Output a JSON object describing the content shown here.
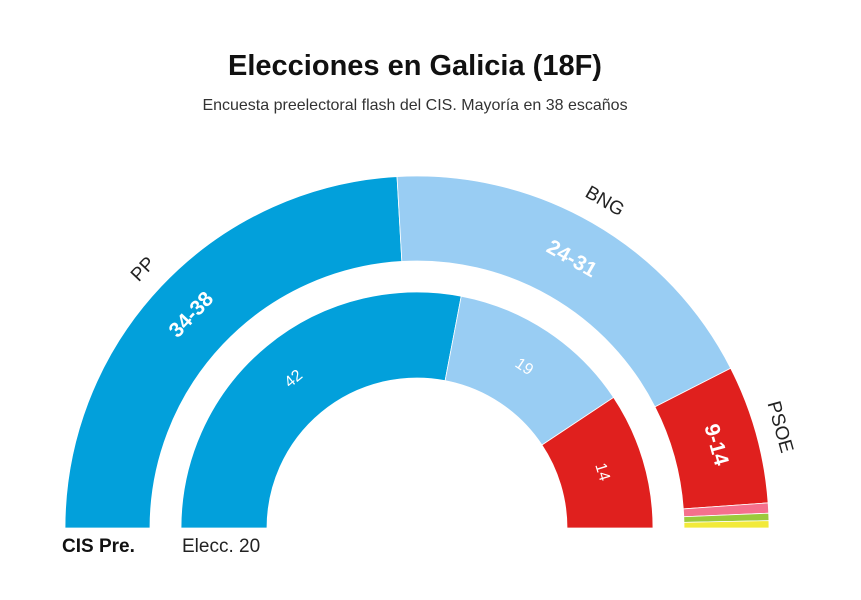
{
  "title": "Elecciones en Galicia (18F)",
  "subtitle": "Encuesta preelectoral flash del CIS. Mayoría en 38 escaños",
  "chart_data": {
    "type": "parliament-semicircle",
    "title": "Elecciones en Galicia (18F)",
    "subtitle": "Encuesta preelectoral flash del CIS. Mayoría en 38 escaños",
    "total_seats": 75,
    "majority": 38,
    "rings": [
      {
        "name": "CIS Pre.",
        "segments": [
          {
            "party": "PP",
            "label": "34-38",
            "value": 36,
            "color": "#02a0db"
          },
          {
            "party": "BNG",
            "label": "24-31",
            "value": 27.5,
            "color": "#99cdf3"
          },
          {
            "party": "PSOE",
            "label": "9-14",
            "value": 9.5,
            "color": "#e0201e"
          },
          {
            "party": "",
            "label": "",
            "value": 0.7,
            "color": "#f5708d"
          },
          {
            "party": "",
            "label": "",
            "value": 0.5,
            "color": "#9bca3c"
          },
          {
            "party": "",
            "label": "",
            "value": 0.5,
            "color": "#f2ea3a"
          }
        ]
      },
      {
        "name": "Elecc. 20",
        "segments": [
          {
            "party": "PP",
            "label": "42",
            "value": 42,
            "color": "#02a0db"
          },
          {
            "party": "BNG",
            "label": "19",
            "value": 19,
            "color": "#99cdf3"
          },
          {
            "party": "PSOE",
            "label": "14",
            "value": 14,
            "color": "#e0201e"
          }
        ]
      }
    ],
    "party_labels": [
      "PP",
      "BNG",
      "PSOE"
    ]
  }
}
